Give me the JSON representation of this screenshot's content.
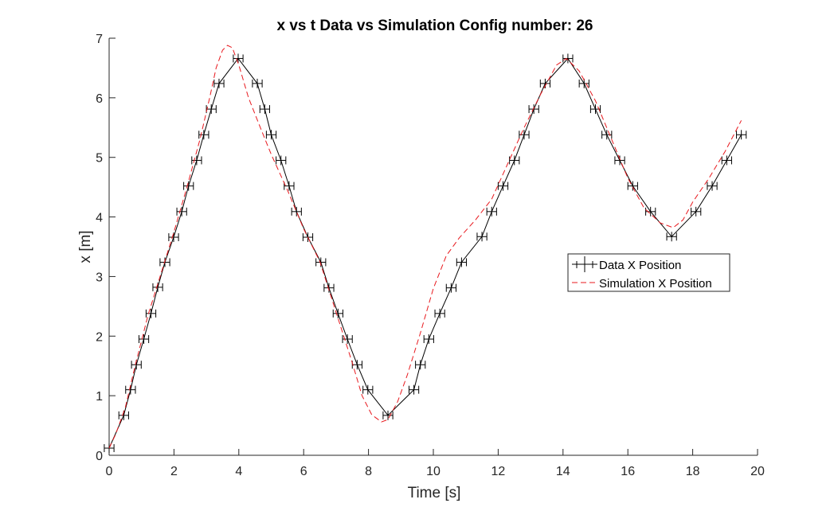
{
  "chart_data": {
    "type": "line",
    "title": "x vs t Data vs Simulation Config number: 26",
    "xlabel": "Time [s]",
    "ylabel": "x [m]",
    "xlim": [
      0,
      20
    ],
    "ylim": [
      0,
      7
    ],
    "xticks": [
      0,
      2,
      4,
      6,
      8,
      10,
      12,
      14,
      16,
      18,
      20
    ],
    "yticks": [
      0,
      1,
      2,
      3,
      4,
      5,
      6,
      7
    ],
    "grid": false,
    "legend_position": "right",
    "series": [
      {
        "name": "Data  X Position",
        "style": "solid-with-horizontal-errorbars",
        "color": "#000000",
        "x_error": 0.15,
        "x": [
          0.0,
          0.45,
          0.66,
          0.84,
          1.07,
          1.29,
          1.5,
          1.72,
          1.99,
          2.24,
          2.45,
          2.7,
          2.92,
          3.15,
          3.39,
          3.98,
          4.57,
          4.8,
          5.0,
          5.3,
          5.55,
          5.78,
          6.13,
          6.53,
          6.78,
          7.06,
          7.35,
          7.65,
          7.98,
          8.6,
          9.4,
          9.6,
          9.86,
          10.2,
          10.55,
          10.87,
          11.5,
          11.8,
          12.15,
          12.5,
          12.8,
          13.1,
          13.45,
          14.15,
          14.65,
          15.0,
          15.35,
          15.75,
          16.15,
          16.7,
          17.35,
          18.1,
          18.6,
          19.05,
          19.5
        ],
        "y": [
          0.12,
          0.67,
          1.1,
          1.52,
          1.95,
          2.38,
          2.82,
          3.24,
          3.66,
          4.09,
          4.52,
          4.95,
          5.38,
          5.81,
          6.24,
          6.66,
          6.24,
          5.81,
          5.38,
          4.95,
          4.52,
          4.09,
          3.66,
          3.24,
          2.81,
          2.38,
          1.95,
          1.52,
          1.1,
          0.67,
          1.1,
          1.52,
          1.95,
          2.38,
          2.81,
          3.24,
          3.67,
          4.09,
          4.52,
          4.95,
          5.38,
          5.81,
          6.24,
          6.66,
          6.24,
          5.81,
          5.38,
          4.95,
          4.52,
          4.09,
          3.67,
          4.09,
          4.52,
          4.95,
          5.38
        ]
      },
      {
        "name": "Simulation X Position",
        "style": "dashed",
        "color": "#e8191e",
        "x": [
          0.0,
          0.2,
          0.5,
          0.8,
          1.2,
          1.6,
          2.0,
          2.4,
          2.8,
          3.1,
          3.3,
          3.5,
          3.65,
          3.8,
          4.0,
          4.3,
          4.7,
          5.0,
          5.5,
          6.0,
          6.5,
          7.0,
          7.5,
          7.8,
          8.1,
          8.4,
          8.6,
          8.9,
          9.2,
          9.6,
          10.0,
          10.4,
          10.8,
          11.3,
          11.8,
          12.3,
          12.8,
          13.3,
          13.8,
          14.1,
          14.5,
          15.0,
          15.5,
          16.0,
          16.5,
          17.0,
          17.4,
          17.7,
          18.0,
          18.5,
          19.0,
          19.5
        ],
        "y": [
          0.12,
          0.35,
          0.8,
          1.5,
          2.35,
          3.05,
          3.75,
          4.5,
          5.3,
          6.0,
          6.5,
          6.8,
          6.88,
          6.84,
          6.55,
          6.0,
          5.45,
          5.05,
          4.45,
          3.8,
          3.25,
          2.4,
          1.55,
          1.0,
          0.68,
          0.56,
          0.6,
          0.9,
          1.35,
          2.05,
          2.8,
          3.35,
          3.65,
          3.95,
          4.3,
          4.9,
          5.5,
          6.05,
          6.55,
          6.66,
          6.45,
          5.95,
          5.3,
          4.65,
          4.15,
          3.9,
          3.82,
          3.95,
          4.25,
          4.65,
          5.1,
          5.62
        ]
      }
    ]
  }
}
